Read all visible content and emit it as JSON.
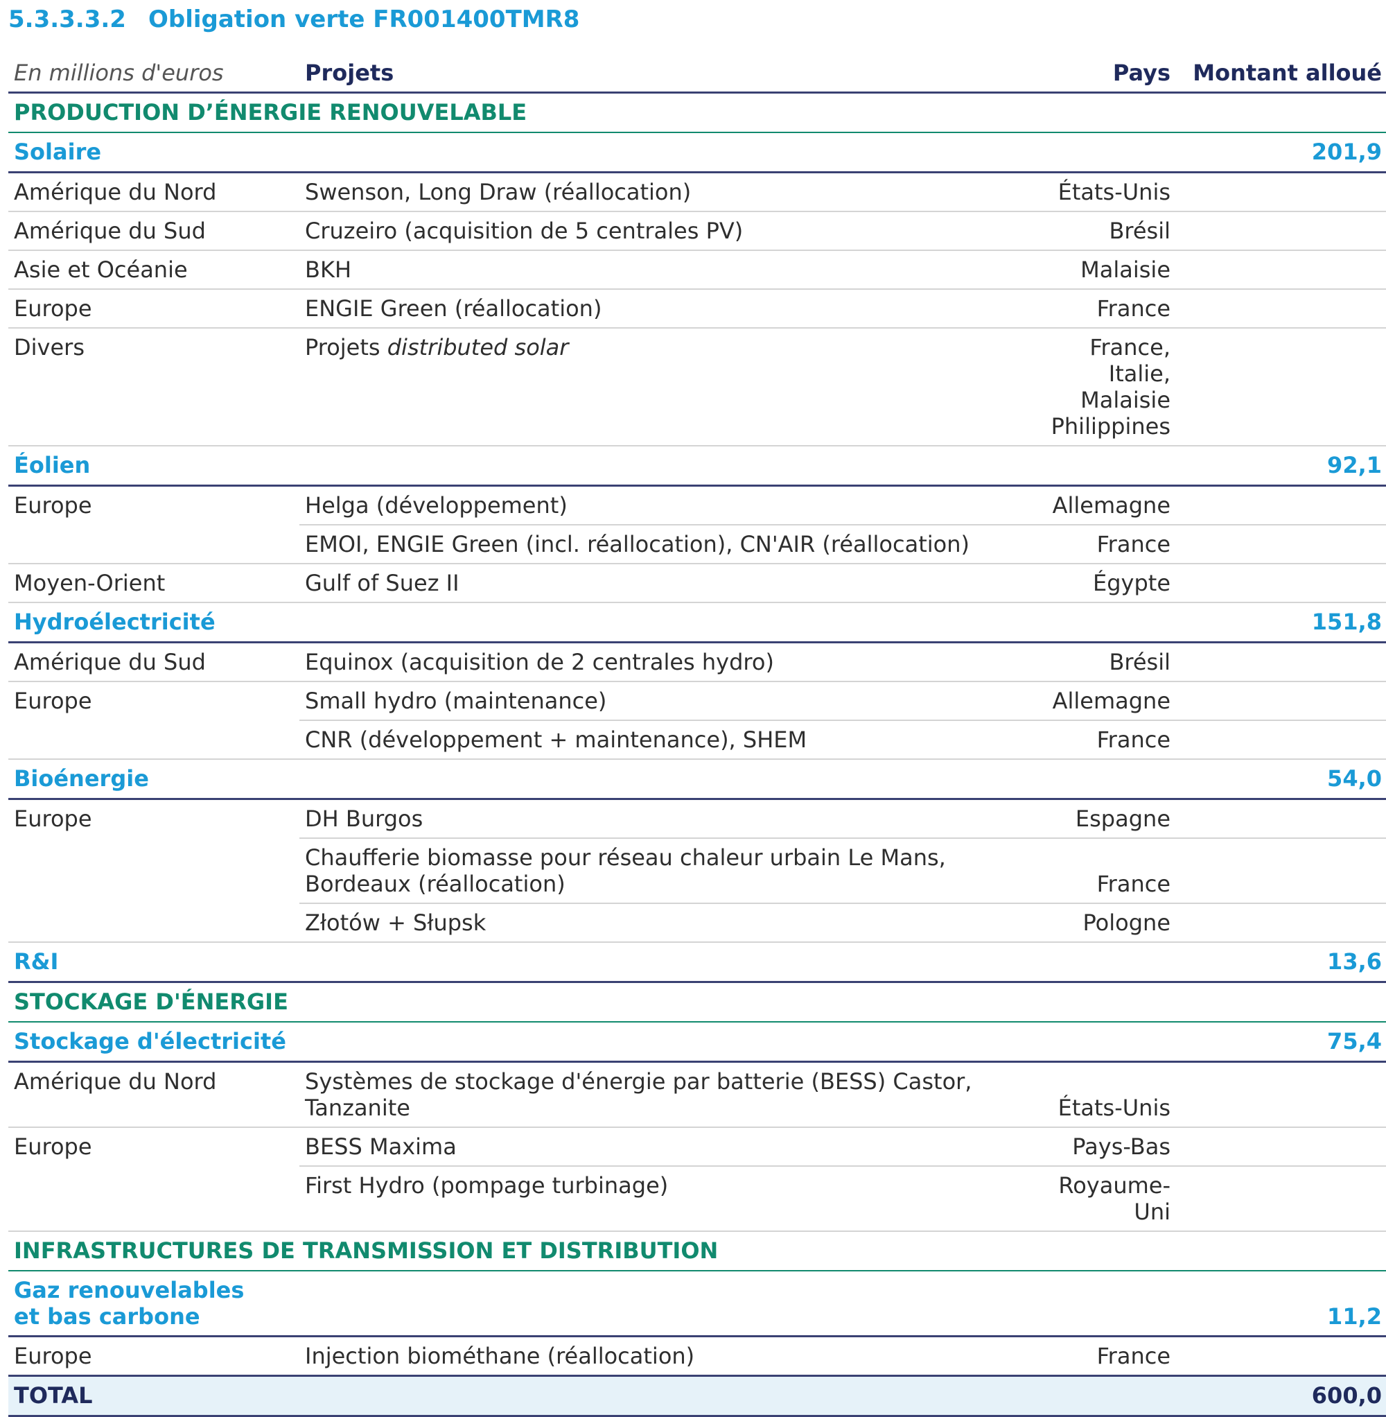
{
  "section_number": "5.3.3.3.2",
  "section_title": "Obligation verte FR001400TMR8",
  "header": {
    "unit": "En millions d'euros",
    "projets": "Projets",
    "pays": "Pays",
    "montant": "Montant alloué"
  },
  "prod": {
    "title": "PRODUCTION D’ÉNERGIE RENOUVELABLE",
    "solaire": {
      "name": "Solaire",
      "amount": "201,9",
      "rows": [
        {
          "region": "Amérique du Nord",
          "project": "Swenson, Long Draw (réallocation)",
          "pays": "États-Unis"
        },
        {
          "region": "Amérique du Sud",
          "project": "Cruzeiro (acquisition de 5 centrales PV)",
          "pays": "Brésil"
        },
        {
          "region": "Asie et Océanie",
          "project": "BKH",
          "pays": "Malaisie"
        },
        {
          "region": "Europe",
          "project": "ENGIE Green (réallocation)",
          "pays": "France"
        },
        {
          "region": "Divers",
          "project_prefix": "Projets ",
          "project_italic": "distributed solar",
          "pays_line1": "France, Italie,",
          "pays_line2": "Malaisie",
          "pays_line3": "Philippines"
        }
      ]
    },
    "eolien": {
      "name": "Éolien",
      "amount": "92,1",
      "rows": [
        {
          "region": "Europe",
          "project": "Helga (développement)",
          "pays": "Allemagne"
        },
        {
          "project": "EMOI, ENGIE Green (incl. réallocation), CN'AIR (réallocation)",
          "pays": "France"
        },
        {
          "region": "Moyen-Orient",
          "project": "Gulf of Suez II",
          "pays": "Égypte"
        }
      ]
    },
    "hydro": {
      "name": "Hydroélectricité",
      "amount": "151,8",
      "rows": [
        {
          "region": "Amérique du Sud",
          "project": "Equinox (acquisition de 2 centrales hydro)",
          "pays": "Brésil"
        },
        {
          "region": "Europe",
          "project": "Small hydro (maintenance)",
          "pays": "Allemagne"
        },
        {
          "project": "CNR (développement + maintenance), SHEM",
          "pays": "France"
        }
      ]
    },
    "bio": {
      "name": "Bioénergie",
      "amount": "54,0",
      "rows": [
        {
          "region": "Europe",
          "project": "DH Burgos",
          "pays": "Espagne"
        },
        {
          "project_line1": "Chaufferie biomasse pour réseau chaleur urbain Le Mans,",
          "project_line2": "Bordeaux (réallocation)",
          "pays": "France"
        },
        {
          "project": "Złotów + Słupsk",
          "pays": "Pologne"
        }
      ]
    },
    "ri": {
      "name": "R&I",
      "amount": "13,6"
    }
  },
  "stock": {
    "title": "STOCKAGE D'ÉNERGIE",
    "elec": {
      "name": "Stockage d'électricité",
      "amount": "75,4",
      "rows": [
        {
          "region": "Amérique du Nord",
          "project_line1": "Systèmes de stockage d'énergie par batterie (BESS) Castor,",
          "project_line2": "Tanzanite",
          "pays": "États-Unis"
        },
        {
          "region": "Europe",
          "project": "BESS Maxima",
          "pays": "Pays-Bas"
        },
        {
          "project": "First Hydro (pompage turbinage)",
          "pays": "Royaume-Uni"
        }
      ]
    }
  },
  "infra": {
    "title": "INFRASTRUCTURES DE TRANSMISSION ET DISTRIBUTION",
    "gaz": {
      "name_line1": "Gaz renouvelables",
      "name_line2": "et bas carbone",
      "amount": "11,2",
      "rows": [
        {
          "region": "Europe",
          "project": "Injection biométhane (réallocation)",
          "pays": "France"
        }
      ]
    }
  },
  "total": {
    "label": "TOTAL",
    "amount": "600,0"
  }
}
